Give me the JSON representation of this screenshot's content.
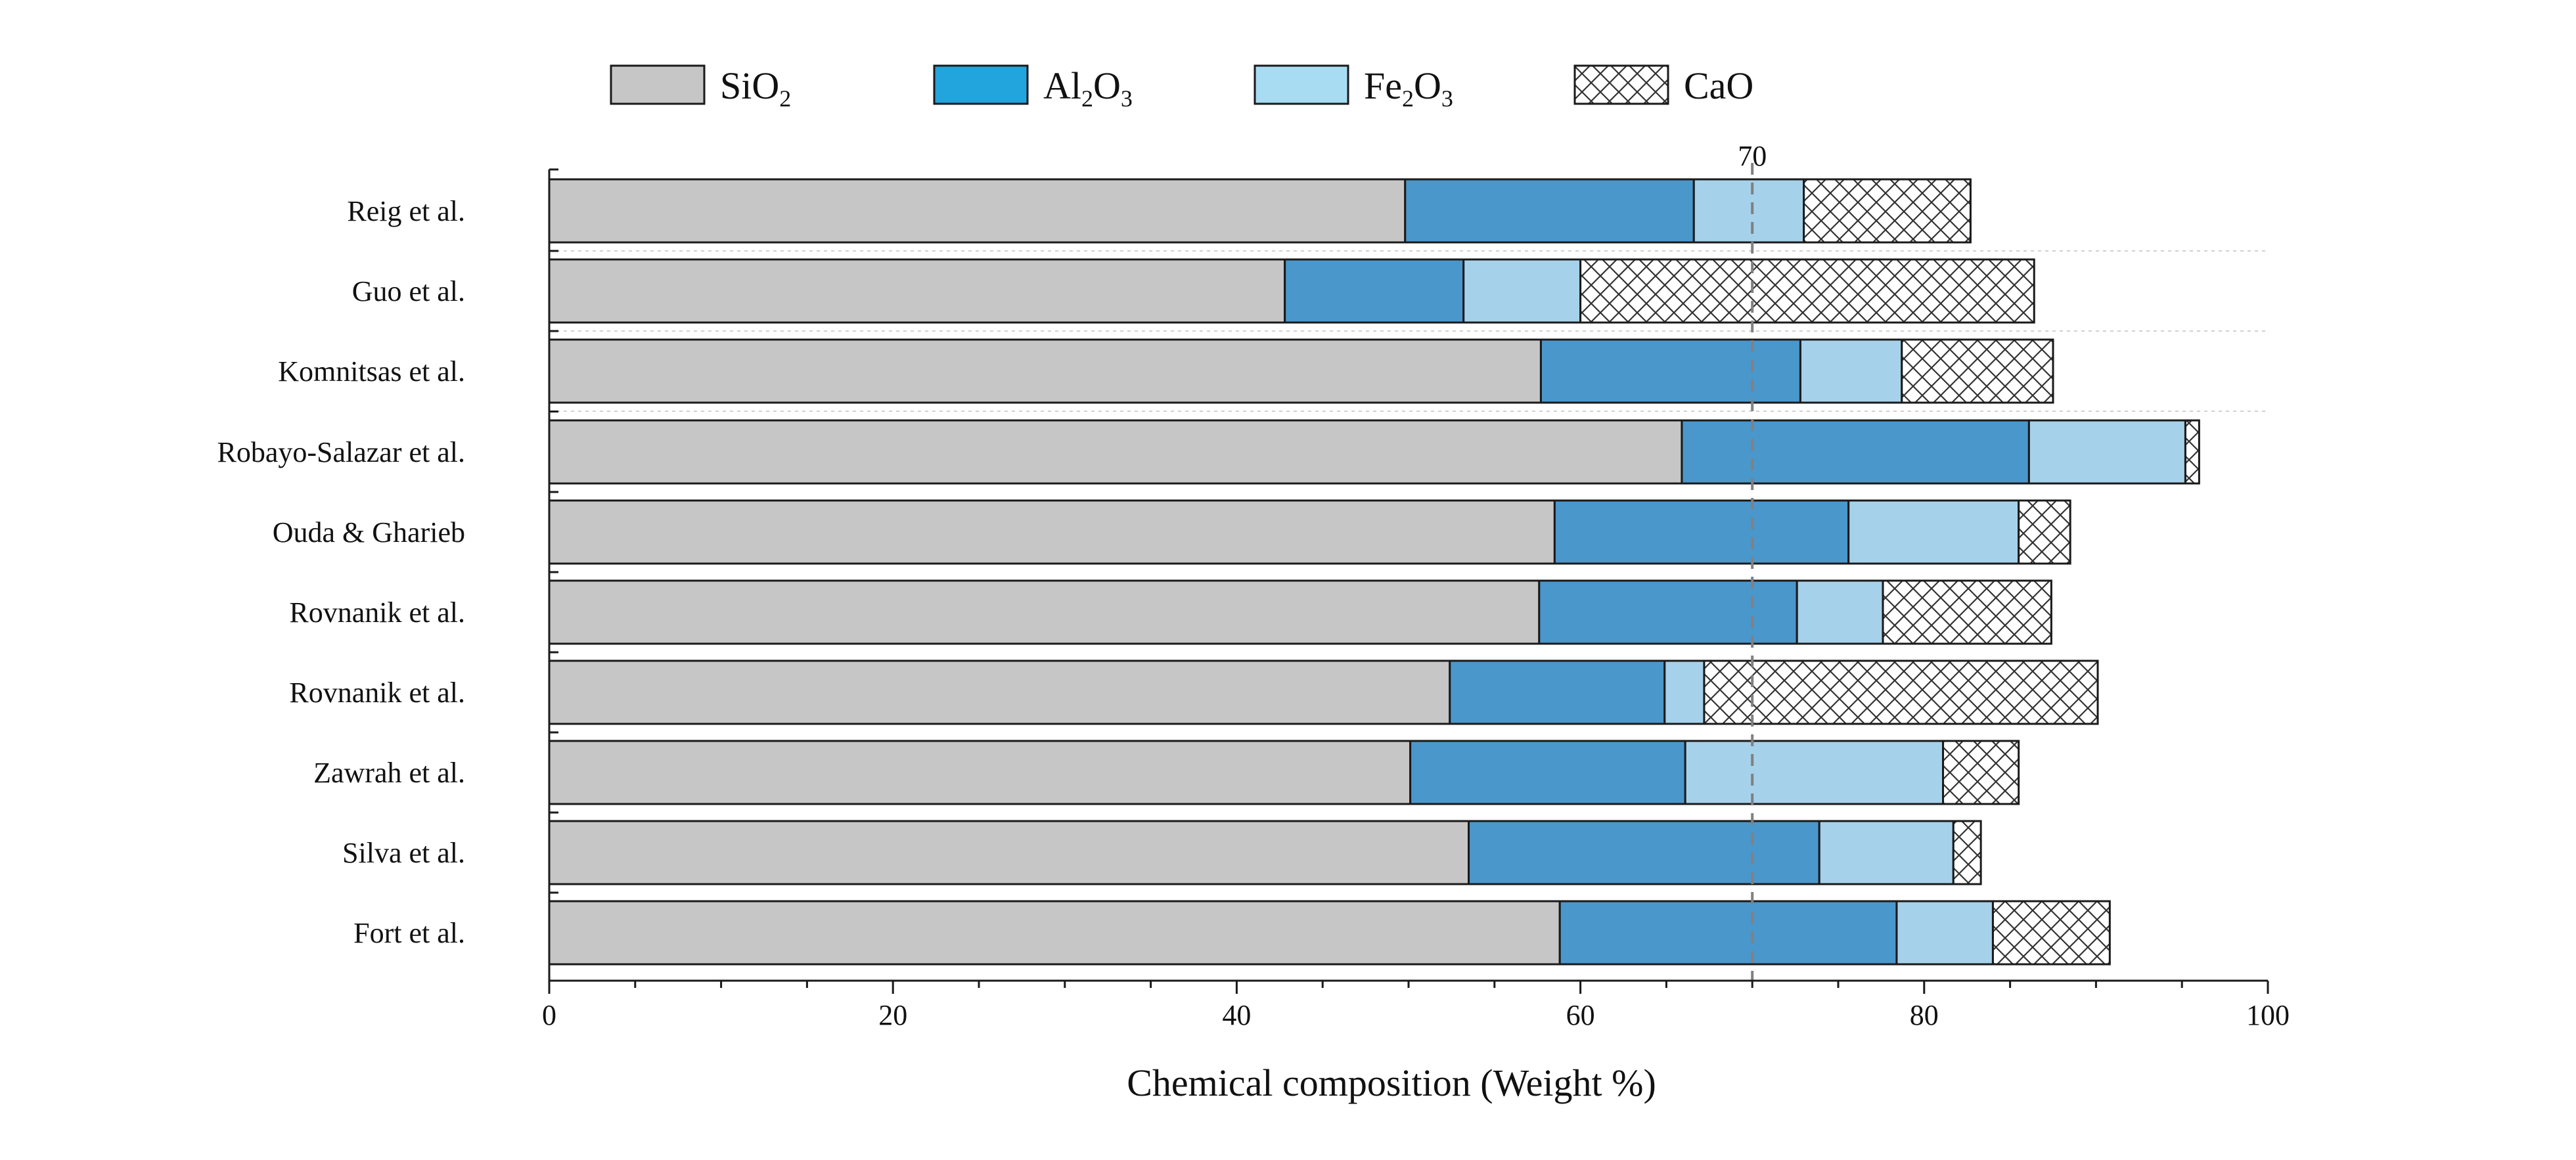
{
  "chart_data": {
    "type": "bar",
    "orientation": "horizontal",
    "stacked": true,
    "title": "",
    "xlabel": "Chemical composition (Weight %)",
    "ylabel": "",
    "xlim": [
      0,
      100
    ],
    "xticks": [
      0,
      20,
      40,
      60,
      80,
      100
    ],
    "grid": false,
    "legend_position": "top",
    "reference_line": {
      "value": 70,
      "label": "70"
    },
    "categories": [
      "Reig et al.",
      "Guo et al.",
      "Komnitsas et al.",
      "Robayo-Salazar et al.",
      "Ouda & Gharieb",
      "Rovnanik et al.",
      "Rovnanik et al.",
      "Zawrah et al.",
      "Silva et al.",
      "Fort et al."
    ],
    "series": [
      {
        "name": "SiO2",
        "base": "SiO",
        "sub": "2",
        "values": [
          49.8,
          42.8,
          57.7,
          65.9,
          58.5,
          57.6,
          52.4,
          50.1,
          53.5,
          58.8
        ]
      },
      {
        "name": "Al2O3",
        "base": "Al",
        "sub": "2",
        "base2": "O",
        "sub2": "3",
        "values": [
          16.8,
          10.4,
          15.1,
          20.2,
          17.1,
          15.0,
          12.5,
          16.0,
          20.4,
          19.6
        ]
      },
      {
        "name": "Fe2O3",
        "base": "Fe",
        "sub": "2",
        "base2": "O",
        "sub2": "3",
        "values": [
          6.4,
          6.8,
          5.9,
          9.1,
          9.9,
          5.0,
          2.3,
          15.0,
          7.8,
          5.6
        ]
      },
      {
        "name": "CaO",
        "base": "CaO",
        "values": [
          9.7,
          26.4,
          8.8,
          0.8,
          3.0,
          9.8,
          22.9,
          4.4,
          1.6,
          6.8
        ]
      }
    ],
    "colors": {
      "SiO2": "#c6c6c6",
      "Al2O3": "#4a97cc",
      "Fe2O3": "#a6d1ea",
      "CaO": "#ffffff",
      "legend_Al2O3": "#22a4dd",
      "legend_Fe2O3": "#a8dcf3",
      "ref_line": "#808080"
    }
  }
}
